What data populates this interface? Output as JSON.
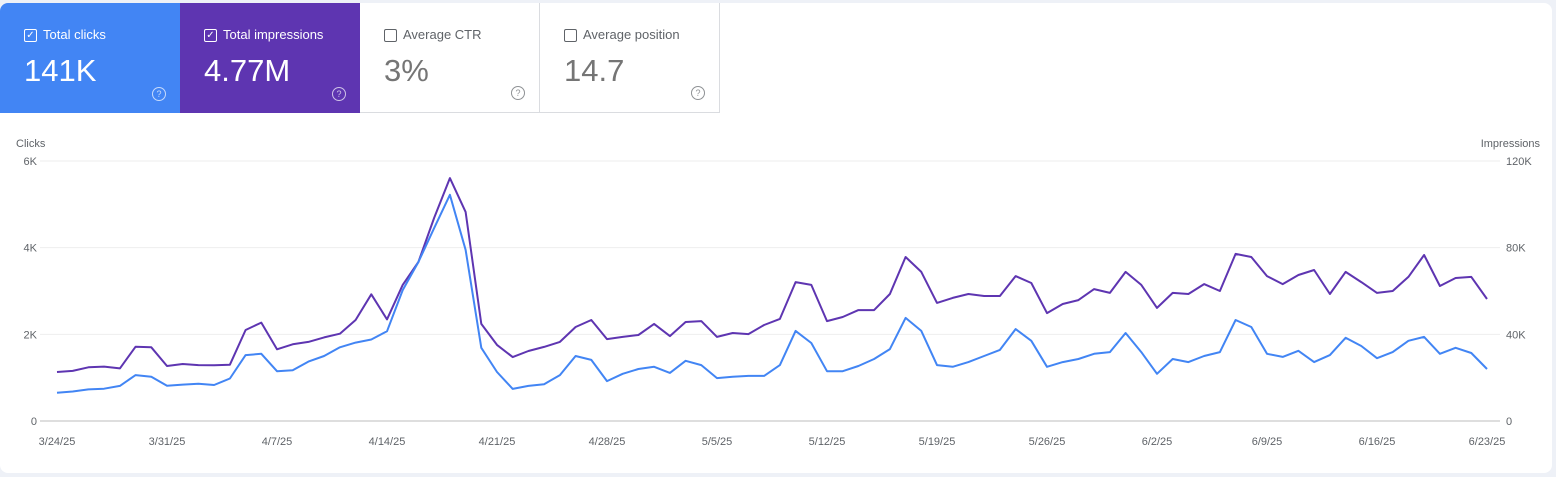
{
  "cards": [
    {
      "label": "Total clicks",
      "value": "141K",
      "checked": true,
      "color": "#4285f4"
    },
    {
      "label": "Total impressions",
      "value": "4.77M",
      "checked": true,
      "color": "#5e35b1"
    },
    {
      "label": "Average CTR",
      "value": "3%",
      "checked": false
    },
    {
      "label": "Average position",
      "value": "14.7",
      "checked": false
    }
  ],
  "chart_data": {
    "type": "line",
    "left_axis_label": "Clicks",
    "right_axis_label": "Impressions",
    "left_ylim": [
      0,
      6000
    ],
    "right_ylim": [
      0,
      120000
    ],
    "left_ticks": [
      "0",
      "2K",
      "4K",
      "6K"
    ],
    "right_ticks": [
      "0",
      "40K",
      "80K",
      "120K"
    ],
    "x_tick_labels": [
      "3/24/25",
      "3/31/25",
      "4/7/25",
      "4/14/25",
      "4/21/25",
      "4/28/25",
      "5/5/25",
      "5/12/25",
      "5/19/25",
      "5/26/25",
      "6/2/25",
      "6/9/25",
      "6/16/25",
      "6/23/25"
    ],
    "grid": true,
    "x": [
      "3/24/25",
      "3/25/25",
      "3/26/25",
      "3/27/25",
      "3/28/25",
      "3/29/25",
      "3/30/25",
      "3/31/25",
      "4/1/25",
      "4/2/25",
      "4/3/25",
      "4/4/25",
      "4/5/25",
      "4/6/25",
      "4/7/25",
      "4/8/25",
      "4/9/25",
      "4/10/25",
      "4/11/25",
      "4/12/25",
      "4/13/25",
      "4/14/25",
      "4/15/25",
      "4/16/25",
      "4/17/25",
      "4/18/25",
      "4/19/25",
      "4/20/25",
      "4/21/25",
      "4/22/25",
      "4/23/25",
      "4/24/25",
      "4/25/25",
      "4/26/25",
      "4/27/25",
      "4/28/25",
      "4/29/25",
      "4/30/25",
      "5/1/25",
      "5/2/25",
      "5/3/25",
      "5/4/25",
      "5/5/25",
      "5/6/25",
      "5/7/25",
      "5/8/25",
      "5/9/25",
      "5/10/25",
      "5/11/25",
      "5/12/25",
      "5/13/25",
      "5/14/25",
      "5/15/25",
      "5/16/25",
      "5/17/25",
      "5/18/25",
      "5/19/25",
      "5/20/25",
      "5/21/25",
      "5/22/25",
      "5/23/25",
      "5/24/25",
      "5/25/25",
      "5/26/25",
      "5/27/25",
      "5/28/25",
      "5/29/25",
      "5/30/25",
      "5/31/25",
      "6/1/25",
      "6/2/25",
      "6/3/25",
      "6/4/25",
      "6/5/25",
      "6/6/25",
      "6/7/25",
      "6/8/25",
      "6/9/25",
      "6/10/25",
      "6/11/25",
      "6/12/25",
      "6/13/25",
      "6/14/25",
      "6/15/25",
      "6/16/25",
      "6/17/25",
      "6/18/25",
      "6/19/25",
      "6/20/25",
      "6/21/25",
      "6/22/25",
      "6/23/25"
    ],
    "series": [
      {
        "name": "Clicks",
        "axis": "left",
        "color": "#4285f4",
        "values": [
          650,
          680,
          730,
          745,
          810,
          1060,
          1020,
          815,
          840,
          860,
          830,
          980,
          1520,
          1550,
          1150,
          1170,
          1370,
          1500,
          1700,
          1810,
          1880,
          2070,
          3020,
          3670,
          4450,
          5220,
          3950,
          1690,
          1130,
          740,
          810,
          850,
          1060,
          1500,
          1410,
          920,
          1090,
          1200,
          1250,
          1110,
          1390,
          1290,
          990,
          1020,
          1040,
          1040,
          1290,
          2080,
          1800,
          1150,
          1150,
          1270,
          1430,
          1660,
          2380,
          2080,
          1290,
          1250,
          1360,
          1500,
          1640,
          2120,
          1850,
          1250,
          1360,
          1430,
          1550,
          1590,
          2030,
          1590,
          1090,
          1430,
          1360,
          1500,
          1590,
          2330,
          2170,
          1550,
          1480,
          1620,
          1360,
          1520,
          1920,
          1730,
          1450,
          1590,
          1850,
          1940,
          1550,
          1690,
          1570,
          1200
        ]
      },
      {
        "name": "Impressions",
        "axis": "right",
        "color": "#5e35b1",
        "values": [
          22600,
          23100,
          24800,
          25100,
          24300,
          34300,
          34000,
          25400,
          26300,
          25800,
          25700,
          26000,
          42000,
          45400,
          33100,
          35400,
          36500,
          38600,
          40300,
          46600,
          58500,
          46900,
          62800,
          73400,
          93700,
          112100,
          96500,
          44800,
          35100,
          29500,
          32300,
          34200,
          36500,
          43400,
          46600,
          37800,
          38800,
          39700,
          44800,
          39200,
          45700,
          46100,
          38800,
          40600,
          40100,
          44300,
          47100,
          64100,
          62800,
          46100,
          48000,
          51200,
          51200,
          58600,
          75700,
          68800,
          54500,
          56800,
          58600,
          57700,
          57700,
          66900,
          63700,
          49800,
          54000,
          55800,
          60900,
          59100,
          68800,
          62800,
          52200,
          59100,
          58600,
          63200,
          60000,
          77100,
          75700,
          66900,
          63200,
          67400,
          69700,
          58600,
          68800,
          64100,
          59100,
          60000,
          66500,
          76600,
          62300,
          66000,
          66500,
          56300
        ]
      }
    ]
  }
}
